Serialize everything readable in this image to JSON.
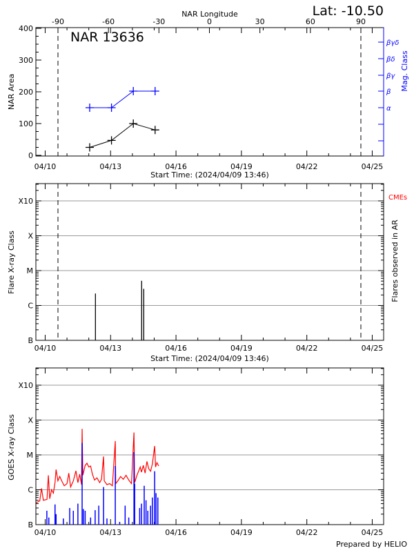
{
  "chart_data": [
    {
      "type": "line",
      "title": "NAR 13636",
      "corner_label": "Lat: -10.50",
      "top_axis_label": "NAR Longitude",
      "top_ticks": [
        "-90",
        "-60",
        "-30",
        "0",
        "30",
        "60",
        "90"
      ],
      "xlabel": "Start Time: (2024/04/09 13:46)",
      "x_tick_labels": [
        "04/10",
        "04/13",
        "04/16",
        "04/19",
        "04/22",
        "04/25"
      ],
      "ylabel": "NAR Area",
      "ylim": [
        0,
        400
      ],
      "y_ticks": [
        "0",
        "100",
        "200",
        "300",
        "400"
      ],
      "right_axis_label": "Mag. Class",
      "right_ticks": [
        "βγδ",
        "βδ",
        "βγ",
        "β",
        "α",
        "",
        ""
      ],
      "limb_markers_longitude": [
        -90,
        90
      ],
      "series": [
        {
          "color": "#000000",
          "x": [
            "2024-04-12T01:00",
            "2024-04-13T01:00",
            "2024-04-14T01:00",
            "2024-04-15T01:00"
          ],
          "values": [
            25,
            47,
            100,
            80
          ]
        },
        {
          "color": "#0000ff",
          "axis": "right",
          "x": [
            "2024-04-12T01:00",
            "2024-04-13T01:00",
            "2024-04-14T01:00",
            "2024-04-15T01:00"
          ],
          "values": [
            "α",
            "α",
            "β",
            "β"
          ]
        }
      ]
    },
    {
      "type": "bar",
      "xlabel": "Start Time: (2024/04/09 13:46)",
      "x_tick_labels": [
        "04/10",
        "04/13",
        "04/16",
        "04/19",
        "04/22",
        "04/25"
      ],
      "ylabel": "Flare X-ray Class",
      "y_scale": "log",
      "y_ticks": [
        "B",
        "C",
        "M",
        "X",
        "X10"
      ],
      "right_axis_label": "Flares observed in AR",
      "cme_label": "CMEs",
      "grid": true,
      "flares": [
        {
          "time": "2024-04-12T07:20",
          "flux": 2.2e-06
        },
        {
          "time": "2024-04-14T10:10",
          "flux": 5.1e-06
        },
        {
          "time": "2024-04-14T12:30",
          "flux": 3e-06
        }
      ]
    },
    {
      "type": "line",
      "x_tick_labels": [
        "04/10",
        "04/13",
        "04/16",
        "04/19",
        "04/22",
        "04/25"
      ],
      "ylabel": "GOES X-ray Class",
      "y_scale": "log",
      "y_ticks": [
        "B",
        "C",
        "M",
        "X",
        "X10"
      ],
      "grid": true,
      "footer": "Prepared by HELIO",
      "series": [
        {
          "color": "#ff0000",
          "points": [
            [
              "2024-04-09T14:00",
              4.2e-07
            ],
            [
              "2024-04-09T18:00",
              4.8e-07
            ],
            [
              "2024-04-09T20:00",
              1.1e-06
            ],
            [
              "2024-04-09T22:00",
              5e-07
            ],
            [
              "2024-04-10T02:00",
              5.3e-07
            ],
            [
              "2024-04-10T03:30",
              2.6e-06
            ],
            [
              "2024-04-10T05:00",
              5.5e-07
            ],
            [
              "2024-04-10T07:00",
              1e-06
            ],
            [
              "2024-04-10T09:00",
              8e-07
            ],
            [
              "2024-04-10T10:50",
              1.6e-06
            ],
            [
              "2024-04-10T12:00",
              3.8e-06
            ],
            [
              "2024-04-10T14:00",
              1.8e-06
            ],
            [
              "2024-04-10T16:00",
              2.4e-06
            ],
            [
              "2024-04-10T18:40",
              1.7e-06
            ],
            [
              "2024-04-10T21:00",
              1.3e-06
            ],
            [
              "2024-04-11T00:00",
              1.5e-06
            ],
            [
              "2024-04-11T02:00",
              3e-06
            ],
            [
              "2024-04-11T04:00",
              1.2e-06
            ],
            [
              "2024-04-11T07:00",
              1.8e-06
            ],
            [
              "2024-04-11T09:50",
              3.5e-06
            ],
            [
              "2024-04-11T12:00",
              1.6e-06
            ],
            [
              "2024-04-11T14:00",
              2.8e-06
            ],
            [
              "2024-04-11T16:00",
              1.4e-06
            ],
            [
              "2024-04-11T16:40",
              5.6e-05
            ],
            [
              "2024-04-11T17:30",
              2.6e-06
            ],
            [
              "2024-04-11T20:00",
              5e-06
            ],
            [
              "2024-04-11T22:00",
              5.8e-06
            ],
            [
              "2024-04-12T00:00",
              4.5e-06
            ],
            [
              "2024-04-12T02:00",
              4.8e-06
            ],
            [
              "2024-04-12T04:00",
              2.8e-06
            ],
            [
              "2024-04-12T06:20",
              1.9e-06
            ],
            [
              "2024-04-12T09:00",
              2.2e-06
            ],
            [
              "2024-04-12T12:00",
              1.6e-06
            ],
            [
              "2024-04-12T14:00",
              2e-06
            ],
            [
              "2024-04-12T16:15",
              9e-06
            ],
            [
              "2024-04-12T17:00",
              1.8e-06
            ],
            [
              "2024-04-12T20:00",
              1.4e-06
            ],
            [
              "2024-04-12T23:00",
              1.5e-06
            ],
            [
              "2024-04-13T02:00",
              1.3e-06
            ],
            [
              "2024-04-13T05:10",
              2.5e-05
            ],
            [
              "2024-04-13T05:40",
              1.5e-06
            ],
            [
              "2024-04-13T08:00",
              1.8e-06
            ],
            [
              "2024-04-13T11:00",
              2.4e-06
            ],
            [
              "2024-04-13T14:00",
              2e-06
            ],
            [
              "2024-04-13T17:00",
              2.6e-06
            ],
            [
              "2024-04-13T20:00",
              1.9e-06
            ],
            [
              "2024-04-13T23:00",
              1.5e-06
            ],
            [
              "2024-04-14T01:45",
              4.4e-05
            ],
            [
              "2024-04-14T02:30",
              1.6e-06
            ],
            [
              "2024-04-14T05:00",
              2.6e-06
            ],
            [
              "2024-04-14T08:40",
              4.5e-06
            ],
            [
              "2024-04-14T10:00",
              3.2e-06
            ],
            [
              "2024-04-14T12:00",
              5e-06
            ],
            [
              "2024-04-14T14:00",
              3e-06
            ],
            [
              "2024-04-14T16:00",
              6.5e-06
            ],
            [
              "2024-04-14T18:00",
              4e-06
            ],
            [
              "2024-04-14T20:00",
              3.4e-06
            ],
            [
              "2024-04-14T22:00",
              5.5e-06
            ],
            [
              "2024-04-15T00:30",
              1.8e-05
            ],
            [
              "2024-04-15T01:30",
              4.5e-06
            ],
            [
              "2024-04-15T03:00",
              6e-06
            ],
            [
              "2024-04-15T05:00",
              4.8e-06
            ]
          ]
        },
        {
          "color": "#0000ff",
          "points": [
            [
              "2024-04-10T01:50",
              2.5e-07
            ],
            [
              "2024-04-10T04:00",
              1.6e-07
            ],
            [
              "2024-04-10T10:50",
              3.8e-07
            ],
            [
              "2024-04-10T12:00",
              2e-07
            ],
            [
              "2024-04-10T20:00",
              1.5e-07
            ],
            [
              "2024-04-11T03:00",
              3e-07
            ],
            [
              "2024-04-11T07:00",
              2.5e-07
            ],
            [
              "2024-04-11T12:00",
              4e-07
            ],
            [
              "2024-04-11T16:40",
              2.2e-05
            ],
            [
              "2024-04-11T18:00",
              2.8e-07
            ],
            [
              "2024-04-11T20:00",
              2.5e-07
            ],
            [
              "2024-04-12T02:00",
              1.6e-07
            ],
            [
              "2024-04-12T07:00",
              2.6e-07
            ],
            [
              "2024-04-12T11:00",
              3.5e-07
            ],
            [
              "2024-04-12T16:15",
              1.2e-06
            ],
            [
              "2024-04-12T20:00",
              1.5e-07
            ],
            [
              "2024-04-13T05:10",
              4.8e-06
            ],
            [
              "2024-04-13T10:00",
              1.2e-07
            ],
            [
              "2024-04-13T16:00",
              3.5e-07
            ],
            [
              "2024-04-13T20:00",
              1.6e-07
            ],
            [
              "2024-04-14T01:45",
              1.2e-05
            ],
            [
              "2024-04-14T02:30",
              1.5e-06
            ],
            [
              "2024-04-14T08:00",
              3e-07
            ],
            [
              "2024-04-14T10:00",
              4e-07
            ],
            [
              "2024-04-14T13:00",
              1.3e-06
            ],
            [
              "2024-04-14T15:00",
              5e-07
            ],
            [
              "2024-04-14T17:00",
              2.5e-07
            ],
            [
              "2024-04-14T20:00",
              3.5e-07
            ],
            [
              "2024-04-14T22:00",
              6e-07
            ],
            [
              "2024-04-15T00:30",
              3.4e-06
            ],
            [
              "2024-04-15T02:00",
              8e-07
            ],
            [
              "2024-04-15T04:00",
              6e-07
            ]
          ]
        }
      ]
    }
  ]
}
